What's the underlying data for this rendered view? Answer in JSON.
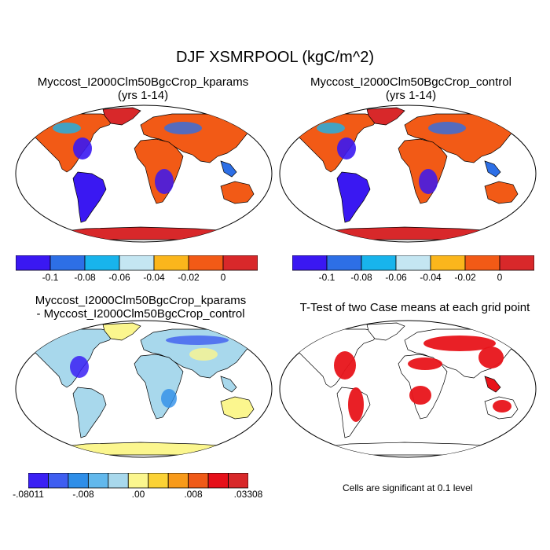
{
  "title": "DJF XSMRPOOL (kgC/m^2)",
  "panels": {
    "kparams": {
      "title_line1": "Myccost_I2000Clm50BgcCrop_kparams",
      "title_line2": "(yrs 1-14)"
    },
    "control": {
      "title_line1": "Myccost_I2000Clm50BgcCrop_control",
      "title_line2": "(yrs 1-14)"
    },
    "diff": {
      "title_line1": "Myccost_I2000Clm50BgcCrop_kparams",
      "title_line2": "- Myccost_I2000Clm50BgcCrop_control"
    },
    "ttest": {
      "title": "T-Test of two Case means at each grid point",
      "note": "Cells are significant at 0.1 level"
    }
  },
  "colors": {
    "land_outline": "#000000",
    "sig_red": "#e8141a"
  },
  "chart_data": [
    {
      "type": "heatmap",
      "name": "kparams",
      "colorbar": {
        "colors": [
          "#3a18f2",
          "#2d6fe6",
          "#18b4ec",
          "#c4e6f2",
          "#fbb61c",
          "#f25a16",
          "#d8282a"
        ],
        "tick_labels": [
          "-0.1",
          "-0.08",
          "-0.06",
          "-0.04",
          "-0.02",
          "0"
        ]
      }
    },
    {
      "type": "heatmap",
      "name": "control",
      "colorbar": {
        "colors": [
          "#3a18f2",
          "#2d6fe6",
          "#18b4ec",
          "#c4e6f2",
          "#fbb61c",
          "#f25a16",
          "#d8282a"
        ],
        "tick_labels": [
          "-0.1",
          "-0.08",
          "-0.06",
          "-0.04",
          "-0.02",
          "0"
        ]
      }
    },
    {
      "type": "heatmap",
      "name": "difference",
      "colorbar": {
        "colors": [
          "#3a20f4",
          "#3f5ef0",
          "#2e8ee8",
          "#62b8ec",
          "#a8d8ec",
          "#fbf68e",
          "#fbd236",
          "#f89a1a",
          "#ef5a18",
          "#e6101a",
          "#d8282a"
        ],
        "tick_labels": [
          "-.08011",
          "-.008",
          ".00",
          ".008",
          ".03308"
        ]
      }
    },
    {
      "type": "heatmap",
      "name": "t-test",
      "significance_level": 0.1
    }
  ]
}
